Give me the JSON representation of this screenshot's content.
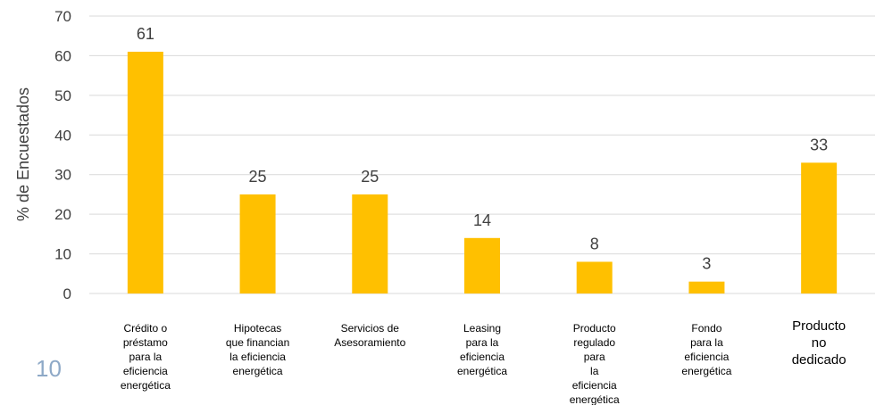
{
  "page_number": "10",
  "colors": {
    "bar": "#FFC000",
    "grid": "#D9D9D9",
    "page_number": "#8EA9C7"
  },
  "chart_data": {
    "type": "bar",
    "title": "",
    "xlabel": "",
    "ylabel": "% de Encuestados",
    "ylim": [
      0,
      70
    ],
    "yticks": [
      0,
      10,
      20,
      30,
      40,
      50,
      60,
      70
    ],
    "grid": true,
    "legend": "none",
    "categories": [
      [
        "Crédito o",
        "préstamo",
        "para la",
        "eficiencia",
        "energética"
      ],
      [
        "Hipotecas",
        "que financian",
        "la eficiencia",
        "energética"
      ],
      [
        "Servicios de",
        "Asesoramiento"
      ],
      [
        "Leasing",
        "para la",
        "eficiencia",
        "energética"
      ],
      [
        "Producto",
        "regulado",
        "para",
        "la",
        "eficiencia",
        "energética"
      ],
      [
        "Fondo",
        "para la",
        "eficiencia",
        "energética"
      ],
      [
        "Producto",
        "no",
        "dedicado"
      ]
    ],
    "values": [
      61,
      25,
      25,
      14,
      8,
      3,
      33
    ]
  }
}
